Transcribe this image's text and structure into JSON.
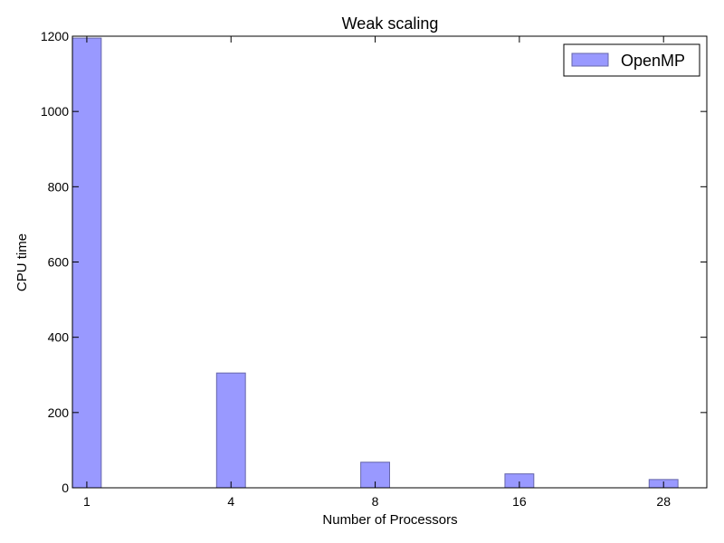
{
  "chart_data": {
    "type": "bar",
    "title": "Weak scaling",
    "xlabel": "Number of Processors",
    "ylabel": "CPU time",
    "categories": [
      "1",
      "4",
      "8",
      "16",
      "28"
    ],
    "series": [
      {
        "name": "OpenMP",
        "values": [
          1195,
          305,
          68,
          37,
          22
        ],
        "color": "#9999ff",
        "edge_color": "#6666aa"
      }
    ],
    "ylim": [
      0,
      1200
    ],
    "yticks": [
      0,
      200,
      400,
      600,
      800,
      1000,
      1200
    ],
    "grid": false,
    "legend": {
      "position": "top-right",
      "entries": [
        "OpenMP"
      ]
    }
  }
}
